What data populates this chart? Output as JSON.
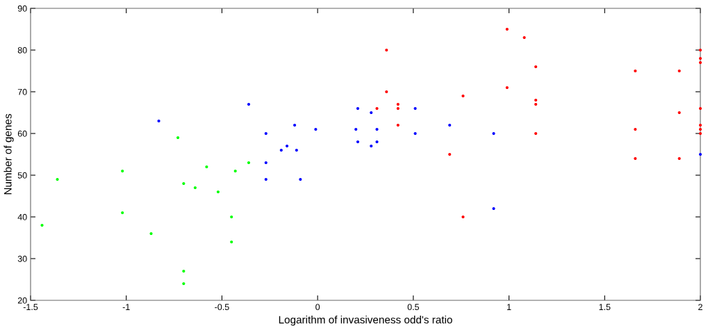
{
  "chart_data": {
    "type": "scatter",
    "xlabel": "Logarithm of invasiveness odd's ratio",
    "ylabel": "Number of genes",
    "xlim": [
      -1.5,
      2
    ],
    "xticks": [
      -1.5,
      -1,
      -0.5,
      0,
      0.5,
      1,
      1.5,
      2
    ],
    "ylim": [
      20,
      90
    ],
    "yticks": [
      20,
      30,
      40,
      50,
      60,
      70,
      80,
      90
    ],
    "grid": false,
    "legend": false,
    "marker": "circle",
    "series": [
      {
        "color": "#00ff00",
        "x": [
          -1.44,
          -1.36,
          -1.02,
          -1.02,
          -0.87,
          -0.73,
          -0.7,
          -0.7,
          -0.7,
          -0.64,
          -0.58,
          -0.52,
          -0.45,
          -0.45,
          -0.43,
          -0.36
        ],
        "values": [
          38,
          49,
          51,
          41,
          36,
          59,
          48,
          27,
          24,
          47,
          52,
          46,
          40,
          34,
          51,
          53
        ]
      },
      {
        "color": "#0000ff",
        "x": [
          -0.83,
          -0.36,
          -0.27,
          -0.27,
          -0.27,
          -0.19,
          -0.16,
          -0.12,
          -0.11,
          -0.09,
          -0.01,
          0.2,
          0.21,
          0.21,
          0.28,
          0.28,
          0.31,
          0.31,
          0.51,
          0.51,
          0.69,
          0.92,
          0.92,
          2.0
        ],
        "values": [
          63,
          67,
          60,
          53,
          49,
          56,
          57,
          62,
          56,
          49,
          61,
          61,
          66,
          58,
          65,
          57,
          61,
          58,
          66,
          60,
          62,
          60,
          42,
          55
        ]
      },
      {
        "color": "#ff0000",
        "x": [
          0.31,
          0.36,
          0.36,
          0.42,
          0.42,
          0.42,
          0.69,
          0.76,
          0.76,
          0.99,
          0.99,
          1.08,
          1.14,
          1.14,
          1.14,
          1.14,
          1.66,
          1.66,
          1.66,
          1.89,
          1.89,
          1.89,
          2.0,
          2.0,
          2.0,
          2.0,
          2.0,
          2.0,
          2.0
        ],
        "values": [
          66,
          80,
          70,
          67,
          66,
          62,
          55,
          69,
          40,
          85,
          71,
          83,
          76,
          68,
          67,
          60,
          75,
          61,
          54,
          75,
          65,
          54,
          80,
          78,
          77,
          66,
          62,
          61,
          60
        ]
      }
    ]
  }
}
